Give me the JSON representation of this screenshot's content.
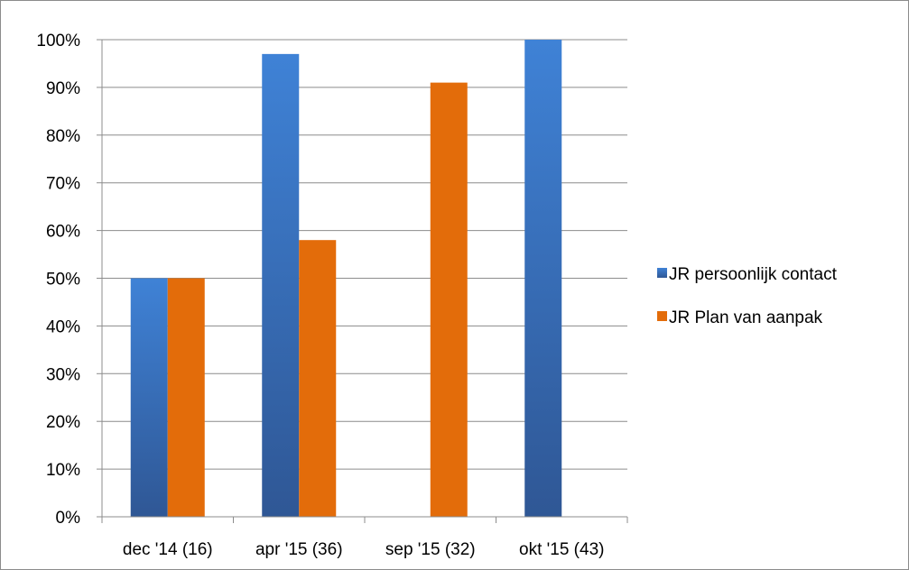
{
  "chart_data": {
    "type": "bar",
    "categories": [
      "dec '14 (16)",
      "apr '15 (36)",
      "sep '15 (32)",
      "okt '15 (43)"
    ],
    "series": [
      {
        "name": "JR persoonlijk contact",
        "values": [
          50,
          97,
          null,
          100
        ],
        "color": "#3a6fbf"
      },
      {
        "name": "JR Plan van aanpak",
        "values": [
          50,
          58,
          91,
          null
        ],
        "color": "#e36c0a"
      }
    ],
    "y_ticks": [
      "0%",
      "10%",
      "20%",
      "30%",
      "40%",
      "50%",
      "60%",
      "70%",
      "80%",
      "90%",
      "100%"
    ],
    "ylim": [
      0,
      100
    ],
    "grid": true,
    "legend_position": "right"
  }
}
